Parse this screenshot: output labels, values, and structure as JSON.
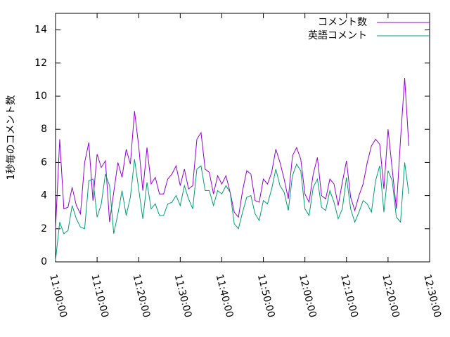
{
  "chart_data": {
    "type": "line",
    "ylabel": "1秒毎のコメント数",
    "x": [
      "11:00:00",
      "11:01:00",
      "11:02:00",
      "11:03:00",
      "11:04:00",
      "11:05:00",
      "11:06:00",
      "11:07:00",
      "11:08:00",
      "11:09:00",
      "11:10:00",
      "11:11:00",
      "11:12:00",
      "11:13:00",
      "11:14:00",
      "11:15:00",
      "11:16:00",
      "11:17:00",
      "11:18:00",
      "11:19:00",
      "11:20:00",
      "11:21:00",
      "11:22:00",
      "11:23:00",
      "11:24:00",
      "11:25:00",
      "11:26:00",
      "11:27:00",
      "11:28:00",
      "11:29:00",
      "11:30:00",
      "11:31:00",
      "11:32:00",
      "11:33:00",
      "11:34:00",
      "11:35:00",
      "11:36:00",
      "11:37:00",
      "11:38:00",
      "11:39:00",
      "11:40:00",
      "11:41:00",
      "11:42:00",
      "11:43:00",
      "11:44:00",
      "11:45:00",
      "11:46:00",
      "11:47:00",
      "11:48:00",
      "11:49:00",
      "11:50:00",
      "11:51:00",
      "11:52:00",
      "11:53:00",
      "11:54:00",
      "11:55:00",
      "11:56:00",
      "11:57:00",
      "11:58:00",
      "11:59:00",
      "12:00:00",
      "12:01:00",
      "12:02:00",
      "12:03:00",
      "12:04:00",
      "12:05:00",
      "12:06:00",
      "12:07:00",
      "12:08:00",
      "12:09:00",
      "12:10:00",
      "12:11:00",
      "12:12:00",
      "12:13:00",
      "12:14:00",
      "12:15:00",
      "12:16:00",
      "12:17:00",
      "12:18:00",
      "12:19:00",
      "12:20:00",
      "12:21:00",
      "12:22:00",
      "12:23:00",
      "12:24:00",
      "12:25:00"
    ],
    "series": [
      {
        "name": "コメント数",
        "color": "#9400d3",
        "values": [
          2.0,
          7.4,
          3.2,
          3.3,
          4.5,
          3.4,
          2.9,
          6.0,
          7.2,
          3.7,
          6.5,
          5.7,
          6.1,
          2.4,
          4.2,
          6.0,
          5.1,
          6.8,
          5.9,
          9.1,
          7.0,
          4.3,
          6.9,
          4.7,
          5.1,
          4.1,
          4.1,
          5.0,
          5.3,
          5.8,
          4.6,
          5.6,
          4.4,
          4.6,
          7.4,
          7.8,
          5.6,
          5.4,
          4.1,
          5.2,
          4.7,
          5.2,
          4.2,
          3.0,
          2.7,
          4.3,
          5.5,
          5.3,
          3.7,
          3.6,
          5.0,
          4.7,
          5.4,
          6.8,
          6.0,
          5.0,
          3.8,
          6.4,
          6.9,
          6.2,
          4.1,
          3.6,
          5.3,
          6.3,
          4.0,
          3.8,
          5.0,
          4.7,
          3.4,
          4.8,
          6.1,
          3.9,
          3.1,
          4.0,
          4.7,
          6.0,
          7.0,
          7.4,
          7.1,
          4.4,
          8.0,
          5.6,
          3.2,
          7.4,
          11.1,
          7.0
        ]
      },
      {
        "name": "英語コメント",
        "color": "#009e73",
        "values": [
          0.1,
          2.4,
          1.7,
          1.9,
          3.4,
          2.6,
          2.1,
          2.0,
          4.9,
          5.0,
          2.7,
          3.5,
          5.3,
          4.6,
          1.7,
          2.9,
          4.3,
          2.8,
          3.9,
          6.2,
          4.4,
          2.6,
          4.8,
          3.2,
          3.5,
          2.8,
          2.8,
          3.5,
          3.6,
          4.0,
          3.4,
          4.6,
          3.8,
          3.2,
          5.6,
          5.8,
          4.3,
          4.3,
          3.4,
          4.3,
          4.1,
          4.6,
          4.2,
          2.3,
          2.0,
          3.0,
          3.9,
          4.0,
          2.9,
          2.5,
          3.7,
          3.5,
          4.4,
          5.6,
          4.6,
          4.2,
          3.1,
          5.2,
          5.9,
          5.5,
          3.2,
          2.8,
          4.5,
          5.0,
          3.3,
          3.1,
          4.3,
          3.6,
          2.6,
          3.2,
          5.1,
          3.2,
          2.4,
          3.0,
          3.7,
          3.5,
          3.0,
          4.9,
          5.8,
          3.0,
          5.5,
          4.9,
          2.7,
          2.4,
          6.0,
          4.1
        ]
      }
    ],
    "xlim": [
      "11:00:00",
      "12:30:00"
    ],
    "xticks": [
      "11:00:00",
      "11:10:00",
      "11:20:00",
      "11:30:00",
      "11:40:00",
      "11:50:00",
      "12:00:00",
      "12:10:00",
      "12:20:00",
      "12:30:00"
    ],
    "ylim": [
      0,
      15
    ],
    "yticks": [
      0,
      2,
      4,
      6,
      8,
      10,
      12,
      14
    ],
    "legend": "top right"
  }
}
